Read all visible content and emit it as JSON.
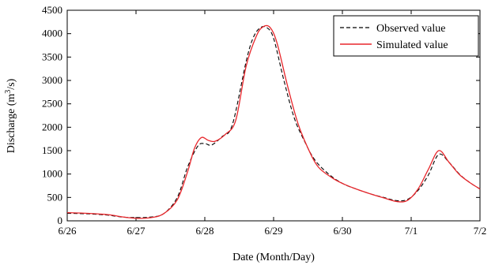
{
  "chart_data": {
    "type": "line",
    "xlabel": "Date (Month/Day)",
    "ylabel": "Discharge (m³/s)",
    "ylabel_base": "Discharge (m",
    "ylabel_sup": "3",
    "ylabel_end": "/s)",
    "ylim": [
      0,
      4500
    ],
    "xlim": [
      0,
      6
    ],
    "x_ticks": [
      0,
      1,
      2,
      3,
      4,
      5,
      6
    ],
    "x_tick_labels": [
      "6/26",
      "6/27",
      "6/28",
      "6/29",
      "6/30",
      "7/1",
      "7/2"
    ],
    "y_ticks": [
      0,
      500,
      1000,
      1500,
      2000,
      2500,
      3000,
      3500,
      4000,
      4500
    ],
    "y_tick_labels": [
      "0",
      "500",
      "1000",
      "1500",
      "2000",
      "2500",
      "3000",
      "3500",
      "4000",
      "4500"
    ],
    "grid": false,
    "legend_position": "top-right",
    "series": [
      {
        "name": "Observed value",
        "color": "#000000",
        "style": "dashed",
        "x": [
          0,
          0.3,
          0.6,
          0.8,
          1.0,
          1.2,
          1.4,
          1.6,
          1.75,
          1.9,
          2.0,
          2.1,
          2.25,
          2.4,
          2.6,
          2.7,
          2.8,
          2.9,
          3.0,
          3.15,
          3.3,
          3.45,
          3.6,
          3.8,
          4.0,
          4.2,
          4.4,
          4.6,
          4.8,
          4.95,
          5.1,
          5.25,
          5.4,
          5.55,
          5.7,
          5.85,
          6.0
        ],
        "y": [
          160,
          150,
          120,
          80,
          70,
          80,
          150,
          500,
          1150,
          1600,
          1650,
          1620,
          1800,
          2050,
          3400,
          3900,
          4120,
          4130,
          3900,
          3000,
          2200,
          1700,
          1300,
          1000,
          800,
          680,
          580,
          500,
          430,
          460,
          650,
          980,
          1420,
          1250,
          1000,
          820,
          680
        ]
      },
      {
        "name": "Simulated value",
        "color": "#e8262b",
        "style": "solid",
        "x": [
          0,
          0.3,
          0.6,
          0.8,
          1.0,
          1.2,
          1.4,
          1.6,
          1.75,
          1.85,
          1.95,
          2.05,
          2.15,
          2.3,
          2.45,
          2.6,
          2.75,
          2.85,
          2.95,
          3.05,
          3.2,
          3.35,
          3.5,
          3.65,
          3.85,
          4.0,
          4.2,
          4.4,
          4.6,
          4.8,
          4.95,
          5.1,
          5.25,
          5.4,
          5.55,
          5.7,
          5.85,
          6.0
        ],
        "y": [
          175,
          160,
          130,
          85,
          55,
          65,
          150,
          450,
          1050,
          1550,
          1780,
          1720,
          1700,
          1850,
          2150,
          3300,
          3950,
          4150,
          4130,
          3800,
          2900,
          2100,
          1550,
          1150,
          920,
          800,
          680,
          580,
          490,
          410,
          440,
          680,
          1100,
          1500,
          1250,
          990,
          820,
          680
        ]
      }
    ]
  }
}
